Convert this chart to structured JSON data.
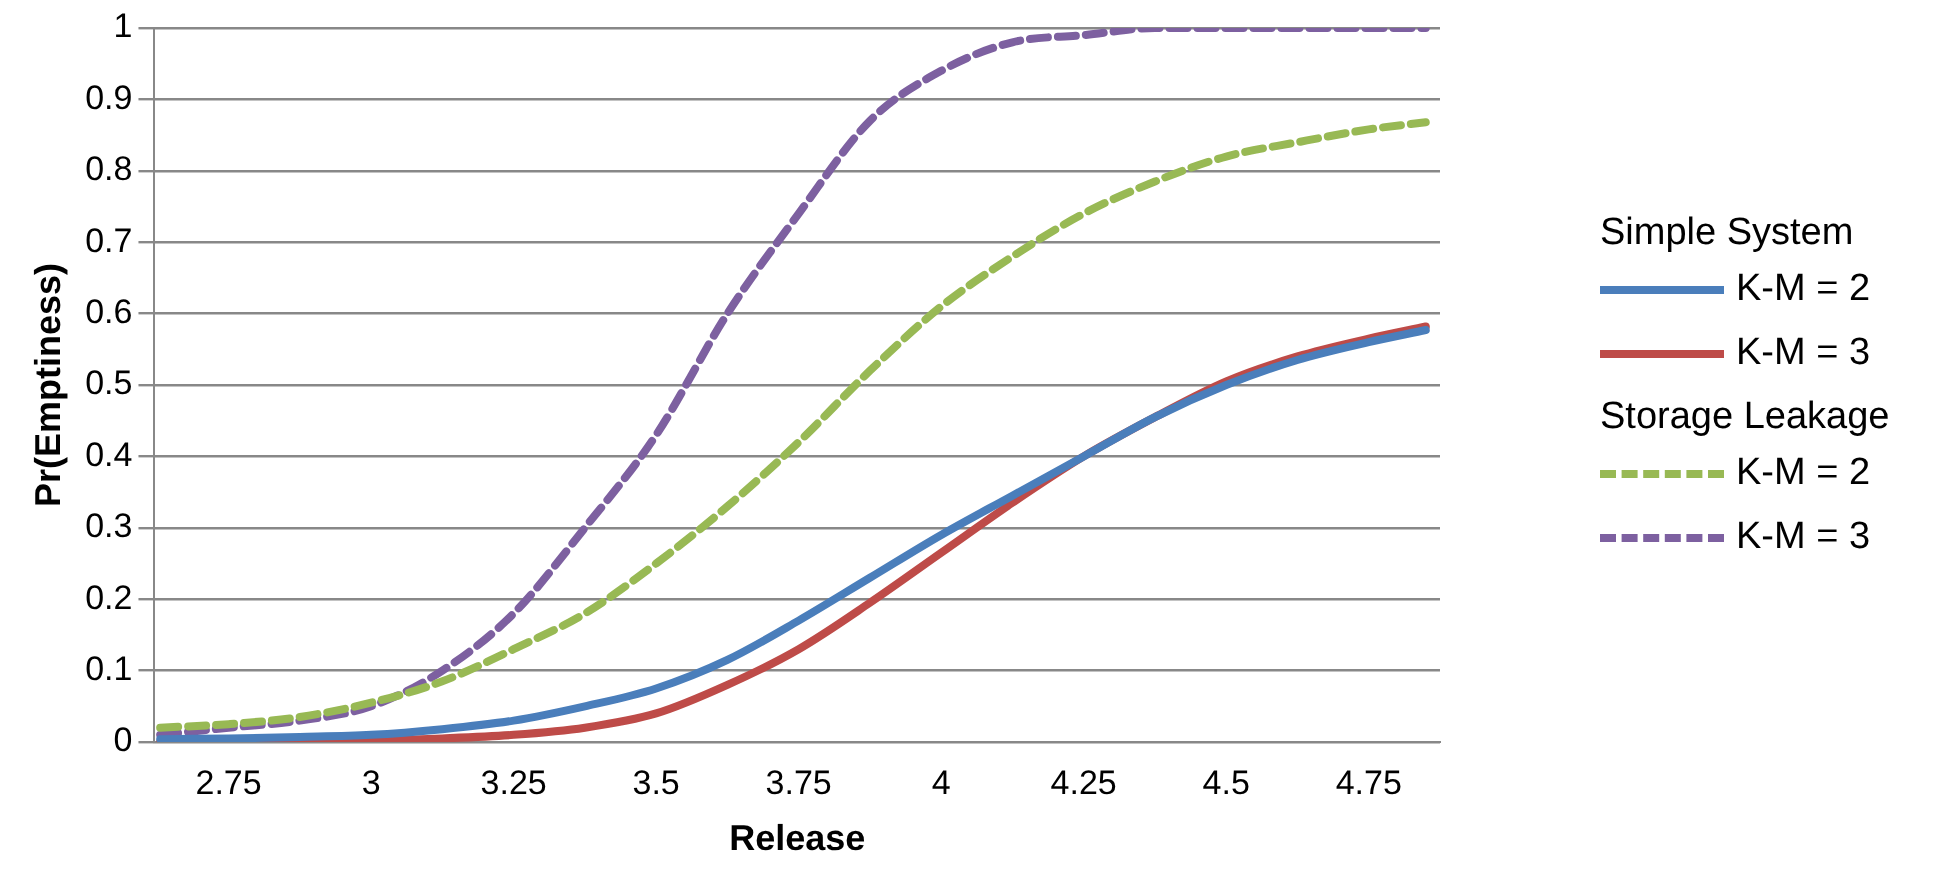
{
  "chart_data": {
    "type": "line",
    "xlabel": "Release",
    "ylabel": "Pr(Emptiness)",
    "xlim": [
      2.62,
      4.875
    ],
    "xticks": [
      2.75,
      3,
      3.25,
      3.5,
      3.75,
      4,
      4.25,
      4.5,
      4.75
    ],
    "ylim": [
      0,
      1
    ],
    "yticks": [
      0,
      0.1,
      0.2,
      0.3,
      0.4,
      0.5,
      0.6,
      0.7,
      0.8,
      0.9,
      1
    ],
    "grid": "y",
    "legend": "right",
    "marker": "none",
    "annotations": [
      "Simple System",
      "Storage Leakage"
    ],
    "x": [
      2.63,
      2.75,
      2.875,
      3,
      3.125,
      3.25,
      3.375,
      3.5,
      3.625,
      3.75,
      3.875,
      4,
      4.125,
      4.25,
      4.375,
      4.5,
      4.625,
      4.75,
      4.85
    ],
    "series": [
      {
        "name": "K-M = 2",
        "color": "#4a7ebb",
        "line_style": "solid",
        "values": [
          0.004,
          0.005,
          0.007,
          0.01,
          0.018,
          0.03,
          0.05,
          0.075,
          0.115,
          0.17,
          0.23,
          0.29,
          0.345,
          0.4,
          0.455,
          0.5,
          0.535,
          0.56,
          0.577
        ]
      },
      {
        "name": "K-M = 3",
        "color": "#be4b48",
        "line_style": "solid",
        "values": [
          0,
          0,
          0.001,
          0.002,
          0.005,
          0.01,
          0.02,
          0.04,
          0.08,
          0.13,
          0.195,
          0.265,
          0.335,
          0.4,
          0.455,
          0.505,
          0.54,
          0.565,
          0.582
        ]
      },
      {
        "name": "K-M = 2",
        "color": "#98b954",
        "line_style": "dashed",
        "values": [
          0.02,
          0.025,
          0.035,
          0.055,
          0.085,
          0.13,
          0.18,
          0.25,
          0.33,
          0.42,
          0.52,
          0.61,
          0.68,
          0.74,
          0.785,
          0.82,
          0.84,
          0.858,
          0.868
        ]
      },
      {
        "name": "K-M = 3",
        "color": "#7d60a0",
        "line_style": "dashed",
        "values": [
          0.01,
          0.02,
          0.03,
          0.05,
          0.1,
          0.18,
          0.3,
          0.43,
          0.6,
          0.74,
          0.87,
          0.94,
          0.98,
          0.99,
          1,
          1,
          1,
          1,
          1
        ]
      }
    ]
  }
}
